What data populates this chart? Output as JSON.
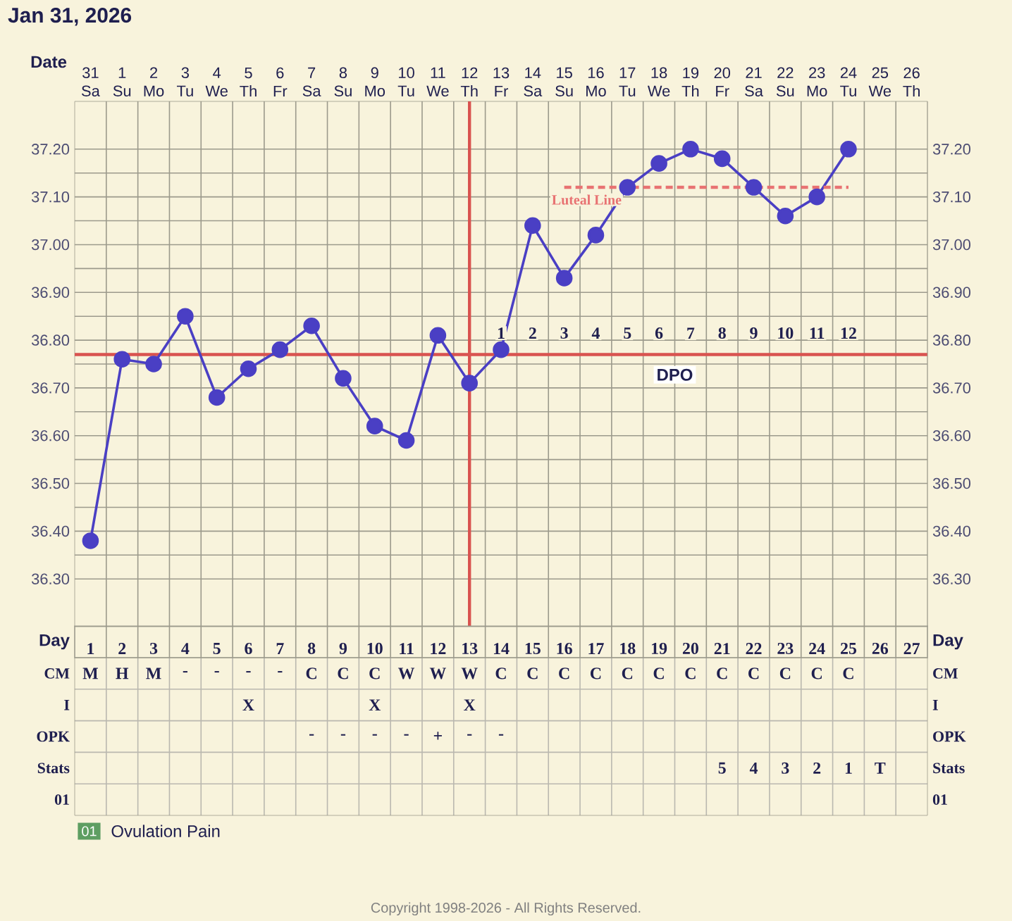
{
  "chart_data": [
    {
      "type": "line",
      "title": "Jan 31, 2026",
      "xlabel": "Date",
      "categories": [
        "31 Sa",
        "1 Su",
        "2 Mo",
        "3 Tu",
        "4 We",
        "5 Th",
        "6 Fr",
        "7 Sa",
        "8 Su",
        "9 Mo",
        "10 Tu",
        "11 We",
        "12 Th",
        "13 Fr",
        "14 Sa",
        "15 Su",
        "16 Mo",
        "17 Tu",
        "18 We",
        "19 Th",
        "20 Fr",
        "21 Sa",
        "22 Su",
        "23 Mo",
        "24 Tu",
        "25 We",
        "26 Th"
      ],
      "series": [
        {
          "color": "#4a3fc4",
          "marker": "circle",
          "values": [
            36.38,
            36.76,
            36.75,
            36.85,
            36.68,
            36.74,
            36.78,
            36.83,
            36.72,
            36.62,
            36.59,
            36.81,
            36.71,
            36.78,
            37.04,
            36.93,
            37.02,
            37.12,
            37.17,
            37.2,
            37.18,
            37.12,
            37.06,
            37.1,
            37.2,
            null,
            null
          ]
        },
        {
          "name": "Luteal Line",
          "color": "#e87272",
          "marker": "none",
          "line_style": "dashed",
          "values": [
            null,
            null,
            null,
            null,
            null,
            null,
            null,
            null,
            null,
            null,
            null,
            null,
            null,
            null,
            null,
            37.12,
            37.12,
            37.12,
            37.12,
            37.12,
            37.12,
            37.12,
            37.12,
            37.12,
            37.12,
            null,
            null
          ]
        }
      ],
      "ylim": [
        36.2,
        37.3
      ],
      "yticks": [
        {
          "value": 36.3,
          "label": "36.30"
        },
        {
          "value": 36.4,
          "label": "36.40"
        },
        {
          "value": 36.5,
          "label": "36.50"
        },
        {
          "value": 36.6,
          "label": "36.60"
        },
        {
          "value": 36.7,
          "label": "36.70"
        },
        {
          "value": 36.8,
          "label": "36.80"
        },
        {
          "value": 36.9,
          "label": "36.90"
        },
        {
          "value": 37.0,
          "label": "37.00"
        },
        {
          "value": 37.1,
          "label": "37.10"
        },
        {
          "value": 37.2,
          "label": "37.20"
        }
      ],
      "y2lim": [
        36.2,
        37.3
      ],
      "y2ticks": [
        {
          "value": 36.3,
          "label": "36.30"
        },
        {
          "value": 36.4,
          "label": "36.40"
        },
        {
          "value": 36.5,
          "label": "36.50"
        },
        {
          "value": 36.6,
          "label": "36.60"
        },
        {
          "value": 36.7,
          "label": "36.70"
        },
        {
          "value": 36.8,
          "label": "36.80"
        },
        {
          "value": 36.9,
          "label": "36.90"
        },
        {
          "value": 37.0,
          "label": "37.00"
        },
        {
          "value": 37.1,
          "label": "37.10"
        },
        {
          "value": 37.2,
          "label": "37.20"
        }
      ],
      "grid": true,
      "ref_lines": [
        {
          "axis": "y",
          "value": 36.77,
          "color": "#d9534f"
        },
        {
          "axis": "x",
          "value": "12 Th",
          "color": "#d9534f"
        }
      ],
      "annotations": [
        "1",
        "2",
        "3",
        "4",
        "5",
        "6",
        "7",
        "8",
        "9",
        "10",
        "11",
        "12",
        "DPO"
      ]
    },
    {
      "type": "heatmap",
      "xlabel": "Day",
      "categories": [
        "1",
        "2",
        "3",
        "4",
        "5",
        "6",
        "7",
        "8",
        "9",
        "10",
        "11",
        "12",
        "13",
        "14",
        "15",
        "16",
        "17",
        "18",
        "19",
        "20",
        "21",
        "22",
        "23",
        "24",
        "25",
        "26",
        "27"
      ],
      "y_categories": [
        "CM",
        "I",
        "OPK",
        "Stats",
        "01"
      ],
      "y2_categories": [
        "CM",
        "I",
        "OPK",
        "Stats",
        "01"
      ],
      "cells": [
        [
          null,
          null,
          null,
          null,
          null,
          null,
          null,
          null,
          null,
          null,
          null,
          null,
          null,
          null,
          null,
          null,
          null,
          null,
          null,
          null,
          null,
          null,
          null,
          null,
          null,
          null,
          null
        ],
        [
          null,
          null,
          null,
          null,
          null,
          null,
          null,
          null,
          null,
          null,
          null,
          null,
          null,
          null,
          null,
          null,
          null,
          null,
          null,
          null,
          null,
          null,
          null,
          null,
          null,
          null,
          null
        ],
        [
          null,
          null,
          null,
          null,
          null,
          null,
          null,
          null,
          null,
          null,
          null,
          null,
          null,
          null,
          null,
          null,
          null,
          null,
          null,
          null,
          null,
          null,
          null,
          null,
          null,
          null,
          null
        ],
        [
          null,
          null,
          null,
          null,
          null,
          null,
          null,
          null,
          null,
          null,
          null,
          null,
          null,
          null,
          null,
          null,
          null,
          null,
          null,
          null,
          null,
          null,
          null,
          null,
          null,
          null,
          null
        ],
        [
          null,
          null,
          null,
          null,
          null,
          null,
          null,
          null,
          null,
          null,
          null,
          null,
          null,
          null,
          null,
          null,
          null,
          null,
          null,
          null,
          null,
          null,
          null,
          null,
          null,
          null,
          null
        ]
      ],
      "cell_labels": [
        [
          "M",
          "H",
          "M",
          "-",
          "-",
          "-",
          "-",
          "C",
          "C",
          "C",
          "W",
          "W",
          "W",
          "C",
          "C",
          "C",
          "C",
          "C",
          "C",
          "C",
          "C",
          "C",
          "C",
          "C",
          "C",
          null,
          null
        ],
        [
          null,
          null,
          null,
          null,
          null,
          "X",
          null,
          null,
          null,
          "X",
          null,
          null,
          "X",
          null,
          null,
          null,
          null,
          null,
          null,
          null,
          null,
          null,
          null,
          null,
          null,
          null,
          null
        ],
        [
          null,
          null,
          null,
          null,
          null,
          null,
          null,
          "-",
          "-",
          "-",
          "-",
          "+",
          "-",
          "-",
          null,
          null,
          null,
          null,
          null,
          null,
          null,
          null,
          null,
          null,
          null,
          null,
          null
        ],
        [
          null,
          null,
          null,
          null,
          null,
          null,
          null,
          null,
          null,
          null,
          null,
          null,
          null,
          null,
          null,
          null,
          null,
          null,
          null,
          null,
          "5",
          "4",
          "3",
          "2",
          "1",
          "T",
          null
        ],
        [
          null,
          null,
          null,
          null,
          null,
          null,
          null,
          null,
          null,
          null,
          null,
          null,
          null,
          null,
          null,
          null,
          null,
          null,
          null,
          null,
          null,
          null,
          null,
          null,
          null,
          null,
          null
        ]
      ],
      "annotations": [
        "01",
        "Ovulation Pain",
        "Copyright 1998-2026 - All Rights Reserved."
      ]
    }
  ]
}
